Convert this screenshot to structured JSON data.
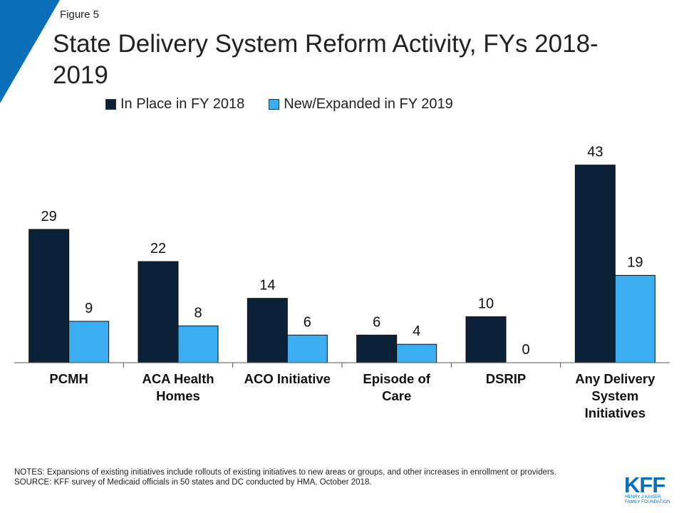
{
  "figure_label": "Figure 5",
  "title": "State Delivery System Reform Activity, FYs 2018-2019",
  "legend": [
    {
      "label": "In Place in FY 2018",
      "color": "#0b2137"
    },
    {
      "label": "New/Expanded in FY 2019",
      "color": "#3aaef0"
    }
  ],
  "chart_data": {
    "type": "bar",
    "title": "State Delivery System Reform Activity, FYs 2018-2019",
    "categories": [
      [
        "PCMH"
      ],
      [
        "ACA Health",
        "Homes"
      ],
      [
        "ACO Initiative"
      ],
      [
        "Episode of",
        "Care"
      ],
      [
        "DSRIP"
      ],
      [
        "Any Delivery",
        "System",
        "Initiatives"
      ]
    ],
    "series": [
      {
        "name": "In Place in FY 2018",
        "values": [
          29,
          22,
          14,
          6,
          10,
          43
        ],
        "color": "#0b2137"
      },
      {
        "name": "New/Expanded in FY 2019",
        "values": [
          9,
          8,
          6,
          4,
          0,
          19
        ],
        "color": "#3aaef0"
      }
    ],
    "ylim": [
      0,
      50
    ],
    "legend_position": "top",
    "grid": false,
    "data_labels": true
  },
  "notes": {
    "notes_line": "NOTES: Expansions of existing initiatives include rollouts of existing initiatives to new areas or groups, and other increases in enrollment or providers.",
    "source_line": "SOURCE: KFF survey of Medicaid officials in 50 states and DC conducted by HMA, October 2018."
  },
  "logo": {
    "wordmark": "KFF",
    "line1": "HENRY J KAISER",
    "line2": "FAMILY FOUNDATION",
    "color": "#0a6fb8"
  },
  "accent_color": "#0a6fb8"
}
